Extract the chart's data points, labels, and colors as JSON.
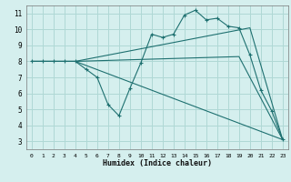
{
  "xlabel": "Humidex (Indice chaleur)",
  "bg_color": "#d5efee",
  "grid_color": "#afd8d5",
  "line_color": "#1e7070",
  "xlim": [
    -0.5,
    23.5
  ],
  "ylim": [
    2.5,
    11.5
  ],
  "xticks": [
    0,
    1,
    2,
    3,
    4,
    5,
    6,
    7,
    8,
    9,
    10,
    11,
    12,
    13,
    14,
    15,
    16,
    17,
    18,
    19,
    20,
    21,
    22,
    23
  ],
  "yticks": [
    3,
    4,
    5,
    6,
    7,
    8,
    9,
    10,
    11
  ],
  "series_main": [
    [
      0,
      8
    ],
    [
      1,
      8
    ],
    [
      2,
      8
    ],
    [
      3,
      8
    ],
    [
      4,
      8
    ],
    [
      5,
      7.5
    ],
    [
      6,
      7.0
    ],
    [
      7,
      5.3
    ],
    [
      8,
      4.6
    ],
    [
      9,
      6.3
    ],
    [
      10,
      7.9
    ],
    [
      11,
      9.7
    ],
    [
      12,
      9.5
    ],
    [
      13,
      9.7
    ],
    [
      14,
      10.9
    ],
    [
      15,
      11.2
    ],
    [
      16,
      10.6
    ],
    [
      17,
      10.7
    ],
    [
      18,
      10.2
    ],
    [
      19,
      10.1
    ],
    [
      20,
      8.4
    ],
    [
      21,
      6.2
    ],
    [
      22,
      4.9
    ],
    [
      23,
      3.1
    ]
  ],
  "series_line1": [
    [
      0,
      8
    ],
    [
      4,
      8
    ],
    [
      23,
      3.1
    ]
  ],
  "series_line2": [
    [
      0,
      8
    ],
    [
      4,
      8
    ],
    [
      19,
      8.3
    ],
    [
      23,
      3.1
    ]
  ],
  "series_line3": [
    [
      0,
      8
    ],
    [
      4,
      8
    ],
    [
      20,
      10.1
    ],
    [
      23,
      3.1
    ]
  ]
}
